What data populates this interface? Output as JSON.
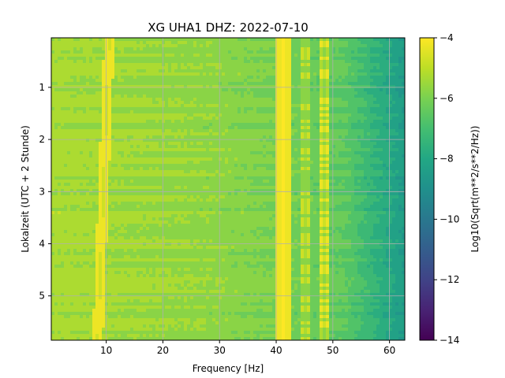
{
  "chart_data": {
    "type": "heatmap",
    "title": "XG UHA1  DHZ: 2022-07-10",
    "xlabel": "Frequency [Hz]",
    "ylabel": "Lokalzeit (UTC + 2 Stunde)",
    "colorbar_label": "Log10(Sqrt(m**2/s**2/Hz))",
    "xlim": [
      0.3,
      62.7
    ],
    "ylim": [
      5.85,
      0.05
    ],
    "clim": [
      -14,
      -4
    ],
    "x_ticks": [
      10,
      20,
      30,
      40,
      50,
      60
    ],
    "y_ticks": [
      1,
      2,
      3,
      4,
      5
    ],
    "colorbar_ticks": [
      -4,
      -6,
      -8,
      -10,
      -12,
      -14
    ],
    "colormap": "viridis",
    "grid": true,
    "spectral_features": [
      {
        "freq_hz": 9.5,
        "amplitude": -4.6
      },
      {
        "freq_hz": 40.5,
        "amplitude": -4.4
      },
      {
        "freq_hz": 42.0,
        "amplitude": -4.5
      },
      {
        "freq_hz": 45.0,
        "amplitude": -5.2
      },
      {
        "freq_hz": 48.5,
        "amplitude": -4.8
      }
    ],
    "background_profile": [
      {
        "freq_hz": 0.3,
        "amplitude": -5.3
      },
      {
        "freq_hz": 30.0,
        "amplitude": -5.7
      },
      {
        "freq_hz": 52.0,
        "amplitude": -6.5
      },
      {
        "freq_hz": 62.7,
        "amplitude": -8.5
      }
    ]
  }
}
